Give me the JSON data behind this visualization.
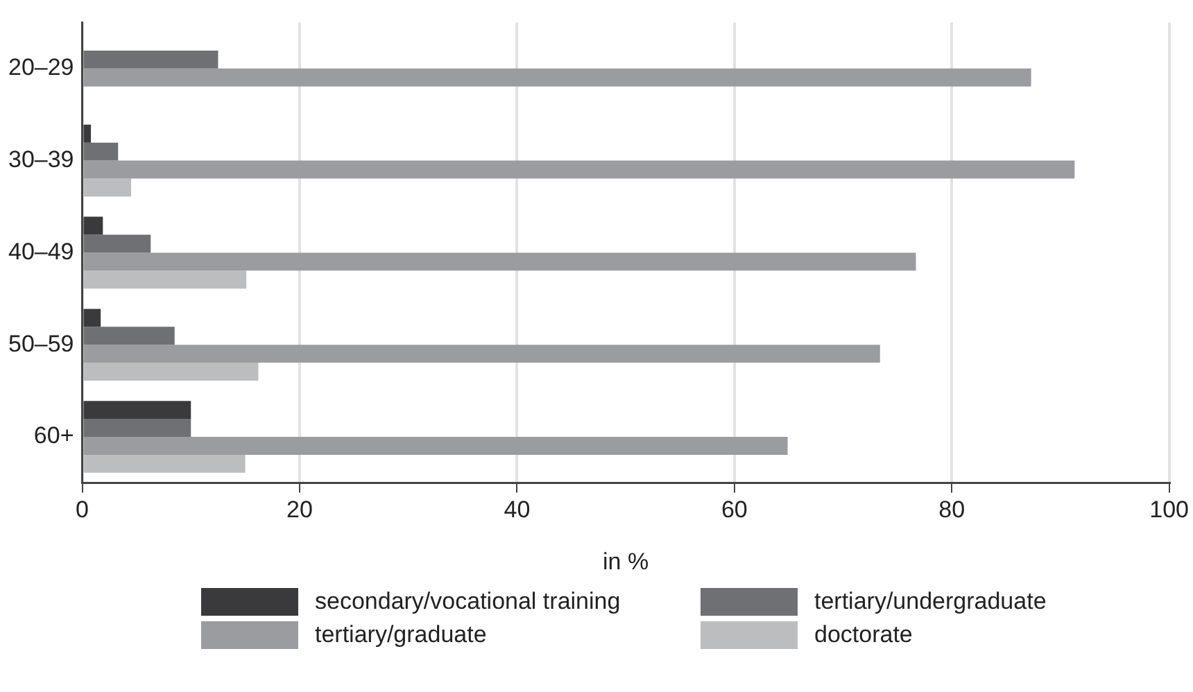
{
  "chart_data": {
    "type": "bar",
    "orientation": "horizontal",
    "xlabel": "in %",
    "categories": [
      "20–29",
      "30–39",
      "40–49",
      "50–59",
      "60+"
    ],
    "series": [
      {
        "name": "secondary/vocational training",
        "color": "#3a3a3c",
        "values": [
          0,
          0.8,
          1.9,
          1.7,
          10.0
        ]
      },
      {
        "name": "tertiary/undergraduate",
        "color": "#6f7073",
        "values": [
          12.5,
          3.3,
          6.3,
          8.5,
          10.0
        ]
      },
      {
        "name": "tertiary/graduate",
        "color": "#9b9c9f",
        "values": [
          87.3,
          91.3,
          76.7,
          73.4,
          64.9
        ]
      },
      {
        "name": "doctorate",
        "color": "#bcbdbf",
        "values": [
          0,
          4.5,
          15.1,
          16.2,
          15.0
        ]
      }
    ],
    "xlim": [
      0,
      100
    ],
    "xticks": [
      0,
      20,
      40,
      60,
      80,
      100
    ],
    "grid": "x",
    "legend": "bottom"
  }
}
